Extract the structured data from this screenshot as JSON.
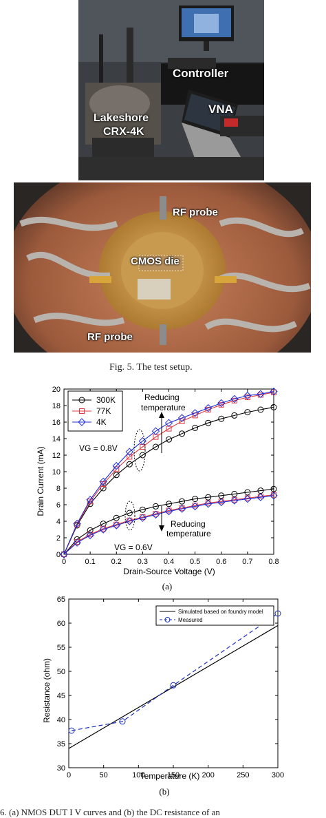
{
  "photos": {
    "top": {
      "labels": {
        "controller": "Controller",
        "vna": "VNA",
        "lakeshore_line1": "Lakeshore",
        "lakeshore_line2": "CRX-4K"
      }
    },
    "bottom": {
      "labels": {
        "rf_probe_top": "RF probe",
        "cmos_die": "CMOS die",
        "rf_probe_bottom": "RF probe"
      }
    }
  },
  "fig5_caption": "Fig. 5. The test setup.",
  "fig6_caption_partial": "6. (a) NMOS DUT I  V   curves and (b) the DC resistance of an",
  "colors": {
    "s300K": "#000000",
    "s77K": "#e0393e",
    "s4K": "#1f2ed8",
    "sim": "#000000",
    "meas": "#1a2fbf"
  },
  "chart_data": [
    {
      "type": "line",
      "panel_label": "(a)",
      "xlabel": "Drain-Source Voltage (V)",
      "ylabel": "Drain Current (mA)",
      "xlim": [
        0,
        0.8
      ],
      "ylim": [
        0,
        20
      ],
      "xticks": [
        0,
        0.1,
        0.2,
        0.3,
        0.4,
        0.5,
        0.6,
        0.7,
        0.8
      ],
      "xtick_labels": [
        "0",
        "0.1",
        "0.2",
        "0.3",
        "0.4",
        "0.5",
        "0.6",
        "0.7",
        "0.8"
      ],
      "yticks": [
        0,
        2,
        4,
        6,
        8,
        10,
        12,
        14,
        16,
        18,
        20
      ],
      "ytick_labels": [
        "0",
        "2",
        "4",
        "6",
        "8",
        "10",
        "12",
        "14",
        "16",
        "18",
        "20"
      ],
      "grid": false,
      "legend_position": "top-left",
      "annotations": {
        "vg08": "VG = 0.8V",
        "vg06": "VG = 0.6V",
        "reduce_top_1": "Reducing",
        "reduce_top_2": "temperature",
        "reduce_bot_1": "Reducing",
        "reduce_bot_2": "temperature"
      },
      "x": [
        0,
        0.05,
        0.1,
        0.15,
        0.2,
        0.25,
        0.3,
        0.35,
        0.4,
        0.45,
        0.5,
        0.55,
        0.6,
        0.65,
        0.7,
        0.75,
        0.8
      ],
      "series": [
        {
          "name": "300K",
          "marker": "circle",
          "color": "#000000",
          "group": "VG=0.8V",
          "legend": true,
          "values": [
            0,
            3.5,
            6.1,
            8.0,
            9.6,
            10.9,
            12.0,
            13.0,
            13.9,
            14.6,
            15.3,
            15.9,
            16.4,
            16.8,
            17.2,
            17.5,
            17.8
          ]
        },
        {
          "name": "77K",
          "marker": "square",
          "color": "#e0393e",
          "group": "VG=0.8V",
          "legend": true,
          "values": [
            0,
            3.6,
            6.4,
            8.5,
            10.3,
            11.8,
            13.0,
            14.2,
            15.2,
            16.1,
            16.8,
            17.5,
            18.1,
            18.6,
            19.0,
            19.3,
            19.6
          ]
        },
        {
          "name": "4K",
          "marker": "diamond",
          "color": "#1f2ed8",
          "group": "VG=0.8V",
          "legend": true,
          "values": [
            0,
            3.7,
            6.6,
            8.8,
            10.7,
            12.4,
            13.7,
            14.9,
            15.9,
            16.5,
            17.1,
            17.7,
            18.3,
            18.8,
            19.2,
            19.4,
            19.7
          ]
        },
        {
          "name": "300K",
          "marker": "circle",
          "color": "#000000",
          "group": "VG=0.6V",
          "legend": false,
          "values": [
            0,
            1.8,
            2.9,
            3.7,
            4.4,
            5.0,
            5.4,
            5.8,
            6.1,
            6.4,
            6.7,
            6.9,
            7.1,
            7.3,
            7.5,
            7.7,
            7.9
          ]
        },
        {
          "name": "77K",
          "marker": "square",
          "color": "#e0393e",
          "group": "VG=0.6V",
          "legend": false,
          "values": [
            0,
            1.5,
            2.4,
            3.1,
            3.6,
            4.1,
            4.5,
            4.9,
            5.3,
            5.6,
            5.9,
            6.2,
            6.4,
            6.6,
            6.8,
            7.0,
            7.2
          ]
        },
        {
          "name": "4K",
          "marker": "diamond",
          "color": "#1f2ed8",
          "group": "VG=0.6V",
          "legend": false,
          "values": [
            0,
            1.4,
            2.3,
            3.0,
            3.5,
            4.0,
            4.4,
            4.8,
            5.2,
            5.5,
            5.8,
            6.1,
            6.3,
            6.5,
            6.7,
            6.9,
            7.1
          ]
        }
      ]
    },
    {
      "type": "line",
      "panel_label": "(b)",
      "xlabel": "Temperature (K)",
      "ylabel": "Resistance (ohm)",
      "xlim": [
        0,
        300
      ],
      "ylim": [
        30,
        65
      ],
      "xticks": [
        0,
        50,
        100,
        150,
        200,
        250,
        300
      ],
      "xtick_labels": [
        "0",
        "50",
        "100",
        "150",
        "200",
        "250",
        "300"
      ],
      "yticks": [
        30,
        35,
        40,
        45,
        50,
        55,
        60,
        65
      ],
      "ytick_labels": [
        "30",
        "35",
        "40",
        "45",
        "50",
        "55",
        "60",
        "65"
      ],
      "grid": false,
      "legend_position": "top-right",
      "series": [
        {
          "name": "Simulated based on foundry model",
          "style": "solid",
          "color": "#000000",
          "x": [
            0,
            300
          ],
          "values": [
            34.0,
            59.5
          ]
        },
        {
          "name": "Measured",
          "style": "dashed",
          "marker": "circle",
          "color": "#1a2fbf",
          "x": [
            4,
            77,
            150,
            300
          ],
          "values": [
            37.7,
            39.6,
            47.1,
            62.0
          ]
        }
      ]
    }
  ]
}
